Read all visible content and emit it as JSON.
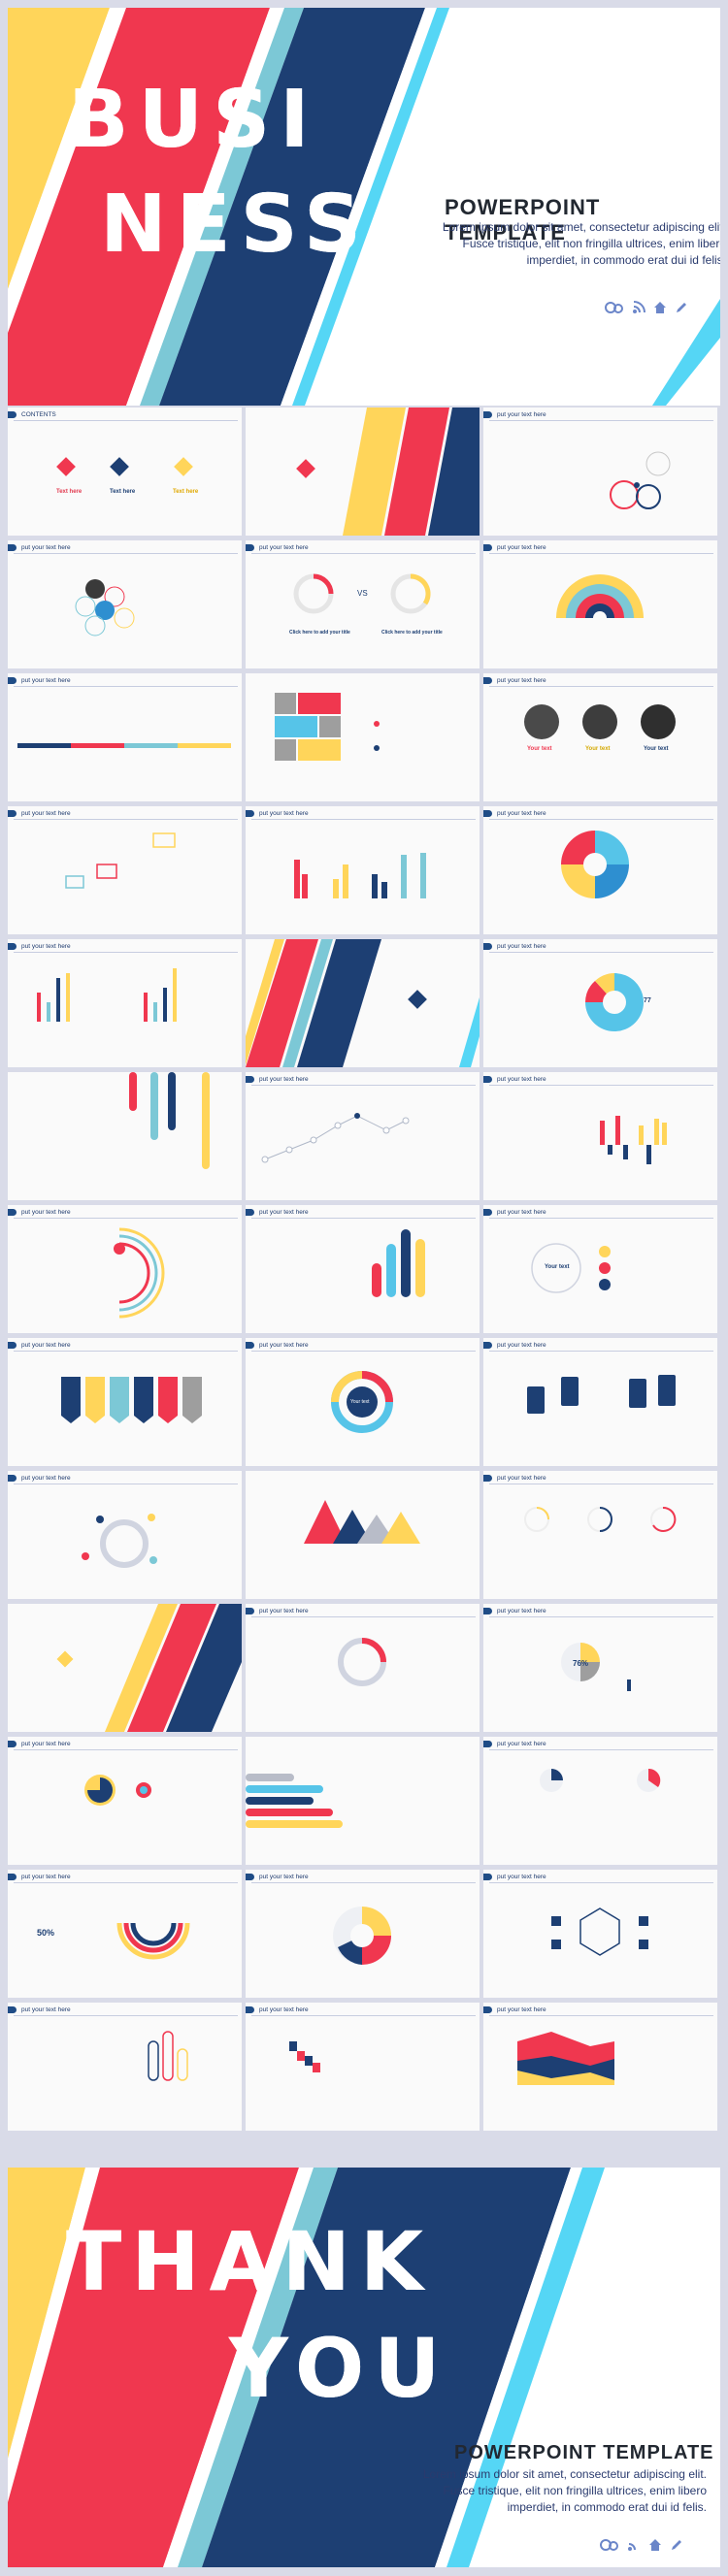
{
  "cover": {
    "word1": "BUSI",
    "word2": "NESS",
    "title": "POWERPOINT  TEMPLATE",
    "subtitle": "Lorem ipsum dolor sit amet, consectetur adipiscing elit. Fusce tristique, elit non fringilla ultrices, enim libero imperdiet, in commodo erat dui id felis.",
    "icons": [
      "users-icon",
      "rss-icon",
      "home-icon",
      "pen-icon"
    ]
  },
  "header_label": "put your text here",
  "contents_label": "CONTENTS",
  "text_here": "Text here",
  "your_text": "Your text",
  "add_title": "Click here to add your title",
  "vs": "VS",
  "percent_77": "77",
  "percent_76": "76%",
  "percent_50": "50%",
  "end": {
    "word1": "THANK",
    "word2": "YOU",
    "title": "POWERPOINT  TEMPLATE",
    "subtitle": "Lorem ipsum dolor sit amet, consectetur adipiscing elit. Fusce tristique, elit non fringilla ultrices, enim libero imperdiet, in commodo erat dui id felis."
  },
  "colors": {
    "yellow": "#ffd55a",
    "red": "#f0374f",
    "navy": "#1d3f73",
    "teal": "#7cc8d6",
    "cyan": "#55d6f5"
  }
}
